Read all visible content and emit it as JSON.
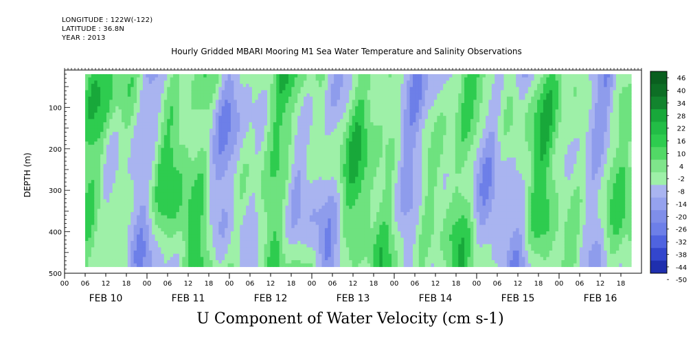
{
  "header": {
    "longitude": "LONGITUDE : 122W(-122)",
    "latitude": "LATITUDE : 36.8N",
    "year": "YEAR : 2013"
  },
  "chart_data": {
    "type": "heatmap",
    "title": "Hourly Gridded MBARI Mooring M1 Sea Water Temperature and Salinity Observations",
    "variable_label": "U Component of Water Velocity (cm s-1)",
    "ylabel": "DEPTH (m)",
    "ylim": [
      500,
      10
    ],
    "y_axis_inverted": true,
    "y_ticks": [
      100,
      200,
      300,
      400,
      500
    ],
    "x_hour_tick_labels": [
      "00",
      "06",
      "12",
      "18",
      "00",
      "06",
      "12",
      "18",
      "00",
      "06",
      "12",
      "18",
      "00",
      "06",
      "12",
      "18",
      "00",
      "06",
      "12",
      "18",
      "00",
      "06",
      "12",
      "18",
      "00",
      "06",
      "12",
      "18"
    ],
    "x_date_labels": [
      "FEB 10",
      "FEB 11",
      "FEB 12",
      "FEB 13",
      "FEB 14",
      "FEB 15",
      "FEB 16"
    ],
    "data_start": "FEB 10 06:00",
    "data_end": "FEB 16 21:00",
    "data_depth_range": [
      20,
      484
    ],
    "colorbar": {
      "levels": [
        46,
        40,
        34,
        28,
        22,
        16,
        10,
        4,
        -2,
        -8,
        -14,
        -20,
        -26,
        -32,
        -38,
        -44,
        -50
      ],
      "colors": {
        "strong_positive": "#0a5f1f",
        "positive": "#2ecc4f",
        "weak_positive": "#9ef0a8",
        "weak_negative": "#a9b4f0",
        "negative": "#6d7fe8",
        "strong_negative": "#050a73"
      }
    }
  }
}
